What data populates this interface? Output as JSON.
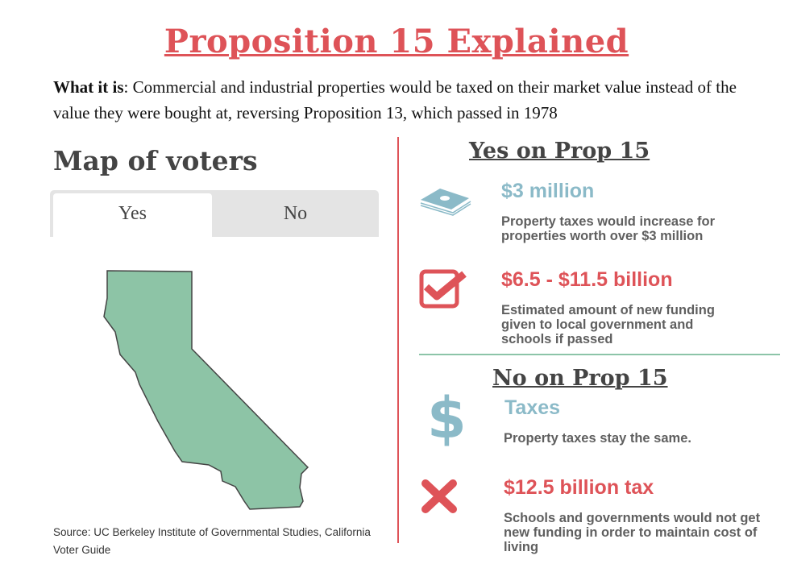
{
  "title": "Proposition 15 Explained",
  "what_it_is": {
    "label": "What it is",
    "text": ": Commercial and industrial properties would be taxed on their market value instead of the value they were bought at, reversing Proposition 13, which passed in 1978"
  },
  "map": {
    "title": "Map of voters",
    "tabs": [
      {
        "label": "Yes",
        "active": true
      },
      {
        "label": "No",
        "active": false
      }
    ],
    "fill_color": "#8dc4a6",
    "source": "Source: UC Berkeley Institute of Governmental Studies, California Voter Guide"
  },
  "yes": {
    "title": "Yes on Prop 15",
    "items": [
      {
        "icon": "money-stack-icon",
        "heading": "$3 million",
        "color": "#8bbac8",
        "desc": "Property taxes would increase for properties worth over $3 million"
      },
      {
        "icon": "checkbox-check-icon",
        "heading": "$6.5 - $11.5 billion",
        "color": "#de5358",
        "desc": "Estimated amount of new funding given to local government and schools if passed"
      }
    ]
  },
  "no": {
    "title": "No on Prop 15",
    "items": [
      {
        "icon": "dollar-sign-icon",
        "heading": "Taxes",
        "color": "#8bbac8",
        "desc": "Property taxes stay the same."
      },
      {
        "icon": "x-mark-icon",
        "heading": "$12.5 billion tax",
        "color": "#de5358",
        "desc": "Schools and governments would not get new funding in order to maintain cost of living"
      }
    ]
  }
}
